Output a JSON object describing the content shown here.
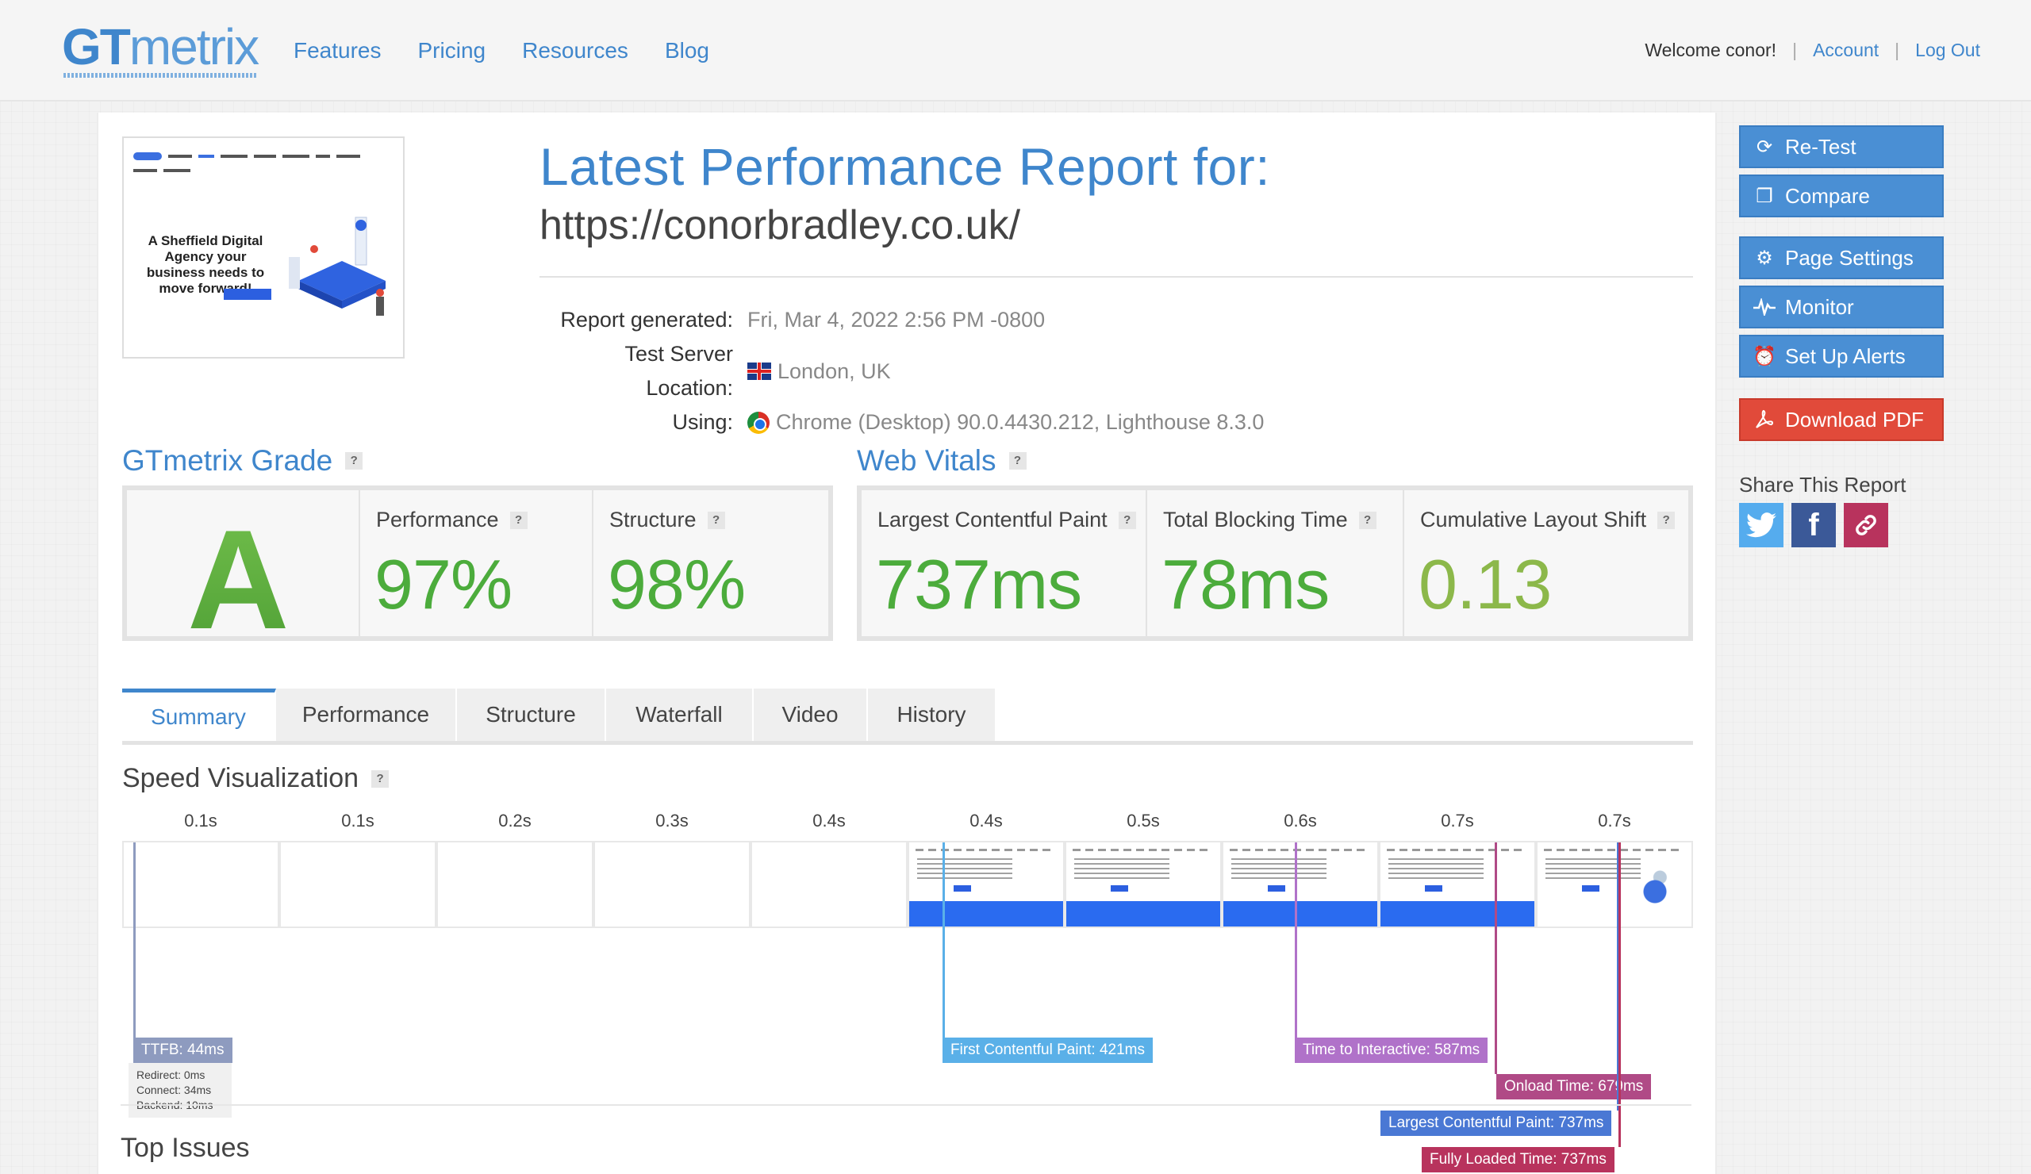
{
  "header": {
    "logo_gt": "GT",
    "logo_metrix": "metrix",
    "nav": [
      "Features",
      "Pricing",
      "Resources",
      "Blog"
    ],
    "welcome": "Welcome conor!",
    "account": "Account",
    "logout": "Log Out",
    "sep": "|"
  },
  "report": {
    "title": "Latest Performance Report for:",
    "url": "https://conorbradley.co.uk/",
    "thumbnail_headline": "A Sheffield Digital Agency your business needs to move forward!",
    "meta": [
      {
        "label": "Report generated:",
        "value": "Fri, Mar 4, 2022 2:56 PM -0800",
        "icon": "none"
      },
      {
        "label": "Test Server Location:",
        "value": "London, UK",
        "icon": "uk-flag-icon"
      },
      {
        "label": "Using:",
        "value": "Chrome (Desktop) 90.0.4430.212, Lighthouse 8.3.0",
        "icon": "chrome-icon"
      }
    ]
  },
  "grade": {
    "heading": "GTmetrix Grade",
    "letter": "A",
    "performance_label": "Performance",
    "performance_value": "97%",
    "structure_label": "Structure",
    "structure_value": "98%"
  },
  "vitals": {
    "heading": "Web Vitals",
    "lcp_label": "Largest Contentful Paint",
    "lcp_value": "737ms",
    "tbt_label": "Total Blocking Time",
    "tbt_value": "78ms",
    "cls_label": "Cumulative Layout Shift",
    "cls_value": "0.13"
  },
  "help": "?",
  "tabs": [
    "Summary",
    "Performance",
    "Structure",
    "Waterfall",
    "Video",
    "History"
  ],
  "speed": {
    "heading": "Speed Visualization",
    "ticks": [
      "0.1s",
      "0.1s",
      "0.2s",
      "0.3s",
      "0.4s",
      "0.4s",
      "0.5s",
      "0.6s",
      "0.7s",
      "0.7s"
    ],
    "markers": {
      "ttfb": "TTFB: 44ms",
      "fcp": "First Contentful Paint: 421ms",
      "tti": "Time to Interactive: 587ms",
      "onload": "Onload Time: 679ms",
      "lcp": "Largest Contentful Paint: 737ms",
      "fully": "Fully Loaded Time: 737ms"
    },
    "ttfb_detail": [
      "Redirect: 0ms",
      "Connect: 34ms",
      "Backend: 10ms"
    ]
  },
  "top_issues": "Top Issues",
  "sidebar": {
    "retest": "Re-Test",
    "compare": "Compare",
    "page_settings": "Page Settings",
    "monitor": "Monitor",
    "alerts": "Set Up Alerts",
    "pdf": "Download PDF",
    "share_label": "Share This Report"
  },
  "colors": {
    "brand_blue": "#3f86cc",
    "grade_green": "#4cac3c",
    "cls_green": "#8cb84a",
    "ttfb": "#8e9bbf",
    "fcp": "#5ab0e8",
    "tti": "#b072c9",
    "onload": "#b04a86",
    "lcp": "#4a78d4",
    "fully": "#b8335d",
    "pdf_red": "#e14a3a"
  }
}
